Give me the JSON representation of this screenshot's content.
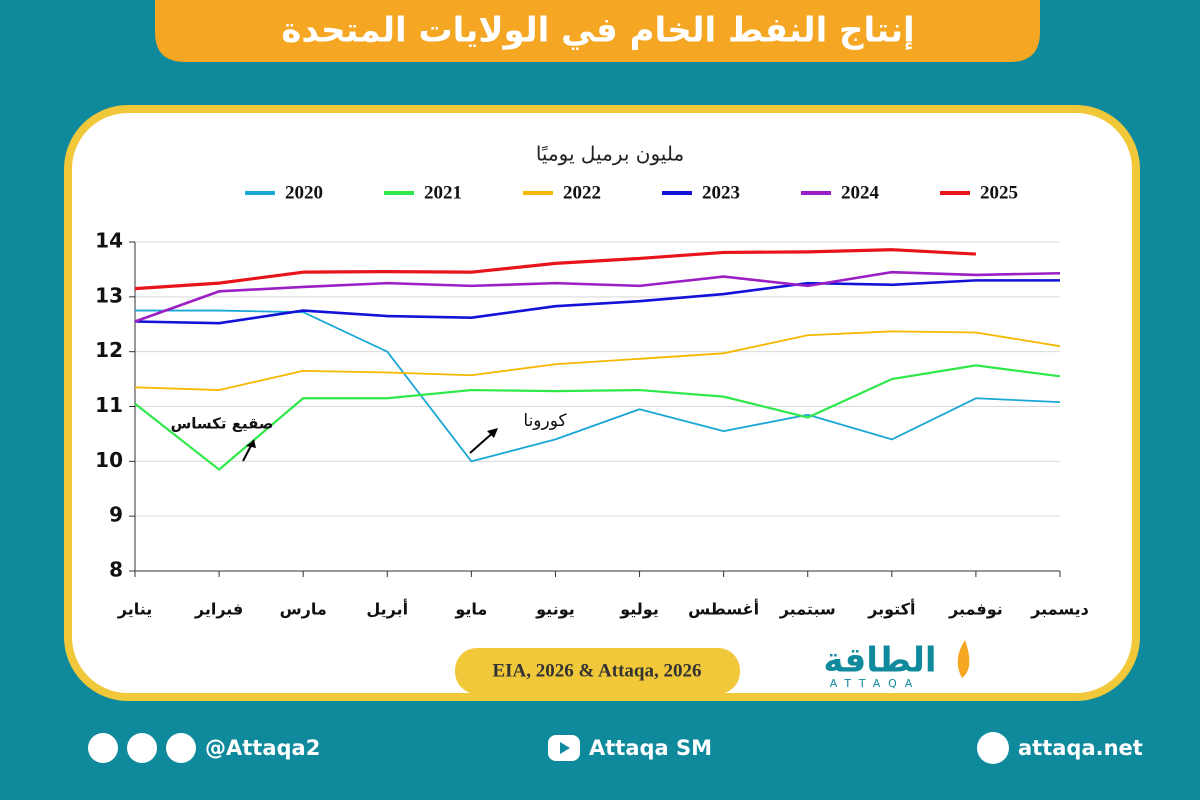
{
  "header": {
    "title": "إنتاج النفط الخام في الولايات المتحدة"
  },
  "chart_data": {
    "type": "line",
    "subtitle": "مليون برميل يوميًا",
    "categories": [
      "يناير",
      "فبراير",
      "مارس",
      "أبريل",
      "مايو",
      "يونيو",
      "يوليو",
      "أغسطس",
      "سبتمبر",
      "أكتوبر",
      "نوفمبر",
      "ديسمبر"
    ],
    "series": [
      {
        "name": "2020",
        "color": "#1aa7d6",
        "values": [
          12.75,
          12.75,
          12.72,
          12.0,
          10.0,
          10.4,
          10.95,
          10.55,
          10.85,
          10.4,
          11.15,
          11.08
        ]
      },
      {
        "name": "2021",
        "color": "#2ee84a",
        "values": [
          11.05,
          9.85,
          11.15,
          11.15,
          11.3,
          11.28,
          11.3,
          11.18,
          10.8,
          11.5,
          11.75,
          11.55
        ]
      },
      {
        "name": "2022",
        "color": "#f5b800",
        "values": [
          11.35,
          11.3,
          11.65,
          11.62,
          11.57,
          11.77,
          11.87,
          11.97,
          12.3,
          12.37,
          12.35,
          12.1
        ]
      },
      {
        "name": "2023",
        "color": "#1212d8",
        "values": [
          12.55,
          12.52,
          12.75,
          12.65,
          12.62,
          12.83,
          12.92,
          13.05,
          13.25,
          13.22,
          13.3,
          13.3
        ]
      },
      {
        "name": "2024",
        "color": "#9b1fc4",
        "values": [
          12.55,
          13.1,
          13.18,
          13.25,
          13.2,
          13.25,
          13.2,
          13.37,
          13.2,
          13.45,
          13.4,
          13.43
        ]
      },
      {
        "name": "2025",
        "color": "#e8141b",
        "values": [
          13.15,
          13.25,
          13.45,
          13.46,
          13.45,
          13.61,
          13.7,
          13.81,
          13.82,
          13.86,
          13.78,
          null
        ]
      }
    ],
    "ylim": [
      8,
      14
    ],
    "yticks": [
      8,
      9,
      10,
      11,
      12,
      13,
      14
    ],
    "grid": true,
    "annotations": [
      "صقيع تكساس",
      "كورونا"
    ],
    "source": "EIA, 2026 & Attaqa, 2026"
  },
  "logo": {
    "name": "الطاقة",
    "latin": "ATTAQA"
  },
  "footer": {
    "social": "@Attaqa2",
    "youtube": "Attaqa SM",
    "web": "attaqa.net"
  }
}
